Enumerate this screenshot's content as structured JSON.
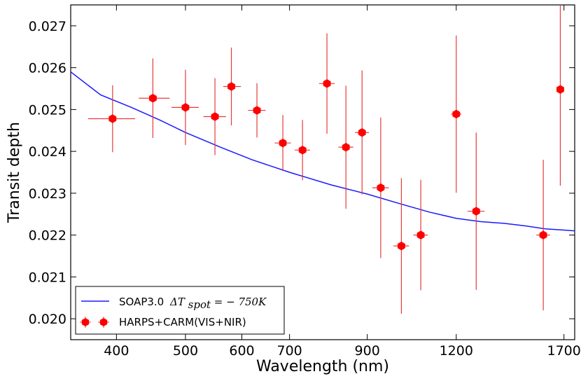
{
  "chart_data": {
    "type": "scatter",
    "xlabel": "Wavelength (nm)",
    "ylabel": "Transit depth",
    "xscale": "log",
    "xlim": [
      345,
      1760
    ],
    "ylim": [
      0.0195,
      0.0275
    ],
    "xticks": [
      400,
      500,
      600,
      700,
      900,
      1200,
      1700
    ],
    "xtick_labels": [
      "400",
      "500",
      "600",
      "700",
      "900",
      "1200",
      "1700"
    ],
    "yticks": [
      0.02,
      0.021,
      0.022,
      0.023,
      0.024,
      0.025,
      0.026,
      0.027
    ],
    "ytick_labels": [
      "0.020",
      "0.021",
      "0.022",
      "0.023",
      "0.024",
      "0.025",
      "0.026",
      "0.027"
    ],
    "grid": false,
    "legend_position": "lower-left",
    "colors": {
      "model": "#1a1aff",
      "data": "#ff0000",
      "errorbar": "#e63b3b"
    },
    "series": [
      {
        "name": "SOAP3.0 ΔT_spot = −750K",
        "kind": "line",
        "x": [
          345,
          380,
          420,
          460,
          500,
          560,
          620,
          700,
          800,
          900,
          1000,
          1100,
          1200,
          1300,
          1400,
          1500,
          1600,
          1700,
          1760
        ],
        "y": [
          0.0259,
          0.02535,
          0.02505,
          0.02475,
          0.02445,
          0.0241,
          0.0238,
          0.0235,
          0.0232,
          0.02298,
          0.02275,
          0.02255,
          0.0224,
          0.02232,
          0.02228,
          0.02222,
          0.02215,
          0.02212,
          0.0221
        ]
      },
      {
        "name": "HARPS+CARM(VIS+NIR)",
        "kind": "errorbar",
        "points": [
          {
            "x": 395,
            "y": 0.02478,
            "xerr": [
              30,
              30
            ],
            "yerr": 0.0008
          },
          {
            "x": 450,
            "y": 0.02527,
            "xerr": [
              20,
              25
            ],
            "yerr": 0.00095
          },
          {
            "x": 500,
            "y": 0.02505,
            "xerr": [
              22,
              22
            ],
            "yerr": 0.0009
          },
          {
            "x": 550,
            "y": 0.02483,
            "xerr": [
              20,
              20
            ],
            "yerr": 0.00092
          },
          {
            "x": 580,
            "y": 0.02555,
            "xerr": [
              15,
              18
            ],
            "yerr": 0.00093
          },
          {
            "x": 630,
            "y": 0.02498,
            "xerr": [
              18,
              18
            ],
            "yerr": 0.00065
          },
          {
            "x": 685,
            "y": 0.0242,
            "xerr": [
              18,
              18
            ],
            "yerr": 0.00067
          },
          {
            "x": 730,
            "y": 0.02403,
            "xerr": [
              18,
              18
            ],
            "yerr": 0.00072
          },
          {
            "x": 790,
            "y": 0.02562,
            "xerr": [
              20,
              20
            ],
            "yerr": 0.0012
          },
          {
            "x": 840,
            "y": 0.0241,
            "xerr": [
              20,
              20
            ],
            "yerr": 0.00147
          },
          {
            "x": 885,
            "y": 0.02445,
            "xerr": [
              20,
              20
            ],
            "yerr": 0.00148
          },
          {
            "x": 940,
            "y": 0.02313,
            "xerr": [
              25,
              25
            ],
            "yerr": 0.00168
          },
          {
            "x": 1005,
            "y": 0.02174,
            "xerr": [
              25,
              25
            ],
            "yerr": 0.00162
          },
          {
            "x": 1070,
            "y": 0.022,
            "xerr": [
              25,
              25
            ],
            "yerr": 0.00132
          },
          {
            "x": 1200,
            "y": 0.02489,
            "xerr": [
              20,
              20
            ],
            "yerr": 0.00188
          },
          {
            "x": 1280,
            "y": 0.02257,
            "xerr": [
              35,
              35
            ],
            "yerr": 0.00188
          },
          {
            "x": 1590,
            "y": 0.022,
            "xerr": [
              35,
              35
            ],
            "yerr": 0.0018
          },
          {
            "x": 1680,
            "y": 0.02548,
            "xerr": [
              20,
              20
            ],
            "yerr": 0.0023
          }
        ]
      }
    ],
    "legend": {
      "model_prefix": "SOAP3.0",
      "model_math": "ΔT",
      "model_sub": "spot",
      "model_value": " = − 750K",
      "data_label": "HARPS+CARM(VIS+NIR)"
    }
  }
}
